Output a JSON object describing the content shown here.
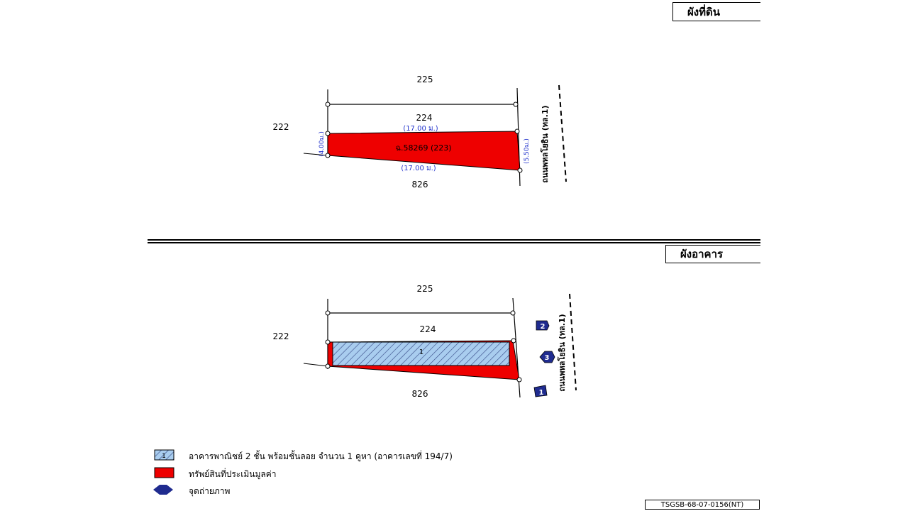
{
  "land_plan": {
    "title": "ผังที่ดิน",
    "north_parcel": "225",
    "adjacent_parcel": "224",
    "west_parcel": "222",
    "south_parcel": "826",
    "subject_label": "ฉ.58269 (223)",
    "top_dimension": "(17.00 ม.)",
    "bottom_dimension": "(17.00 ม.)",
    "left_dimension": "(4.00ม.)",
    "right_dimension": "(5.50ม.)",
    "road_label": "ถนนพหลโยธิน (ทล.1)"
  },
  "building_plan": {
    "title": "ผังอาคาร",
    "north_parcel": "225",
    "adjacent_parcel": "224",
    "west_parcel": "222",
    "south_parcel": "826",
    "building_number": "1",
    "road_label": "ถนนพหลโยธิน (ทล.1)",
    "photo_points": [
      "2",
      "3",
      "1"
    ]
  },
  "legend": {
    "building_number": "1",
    "building": "อาคารพาณิชย์ 2 ชั้น พร้อมชั้นลอย จำนวน 1 คูหา (อาคารเลขที่ 194/7)",
    "property": "ทรัพย์สินที่ประเมินมูลค่า",
    "photo_point": "จุดถ่ายภาพ"
  },
  "colors": {
    "property_fill": "#ee0000",
    "building_fill": "#a9cdef",
    "marker_fill": "#1f2b8f",
    "dimension_text": "#2233cc"
  },
  "reference_code": "TSGSB-68-07-0156(NT)"
}
